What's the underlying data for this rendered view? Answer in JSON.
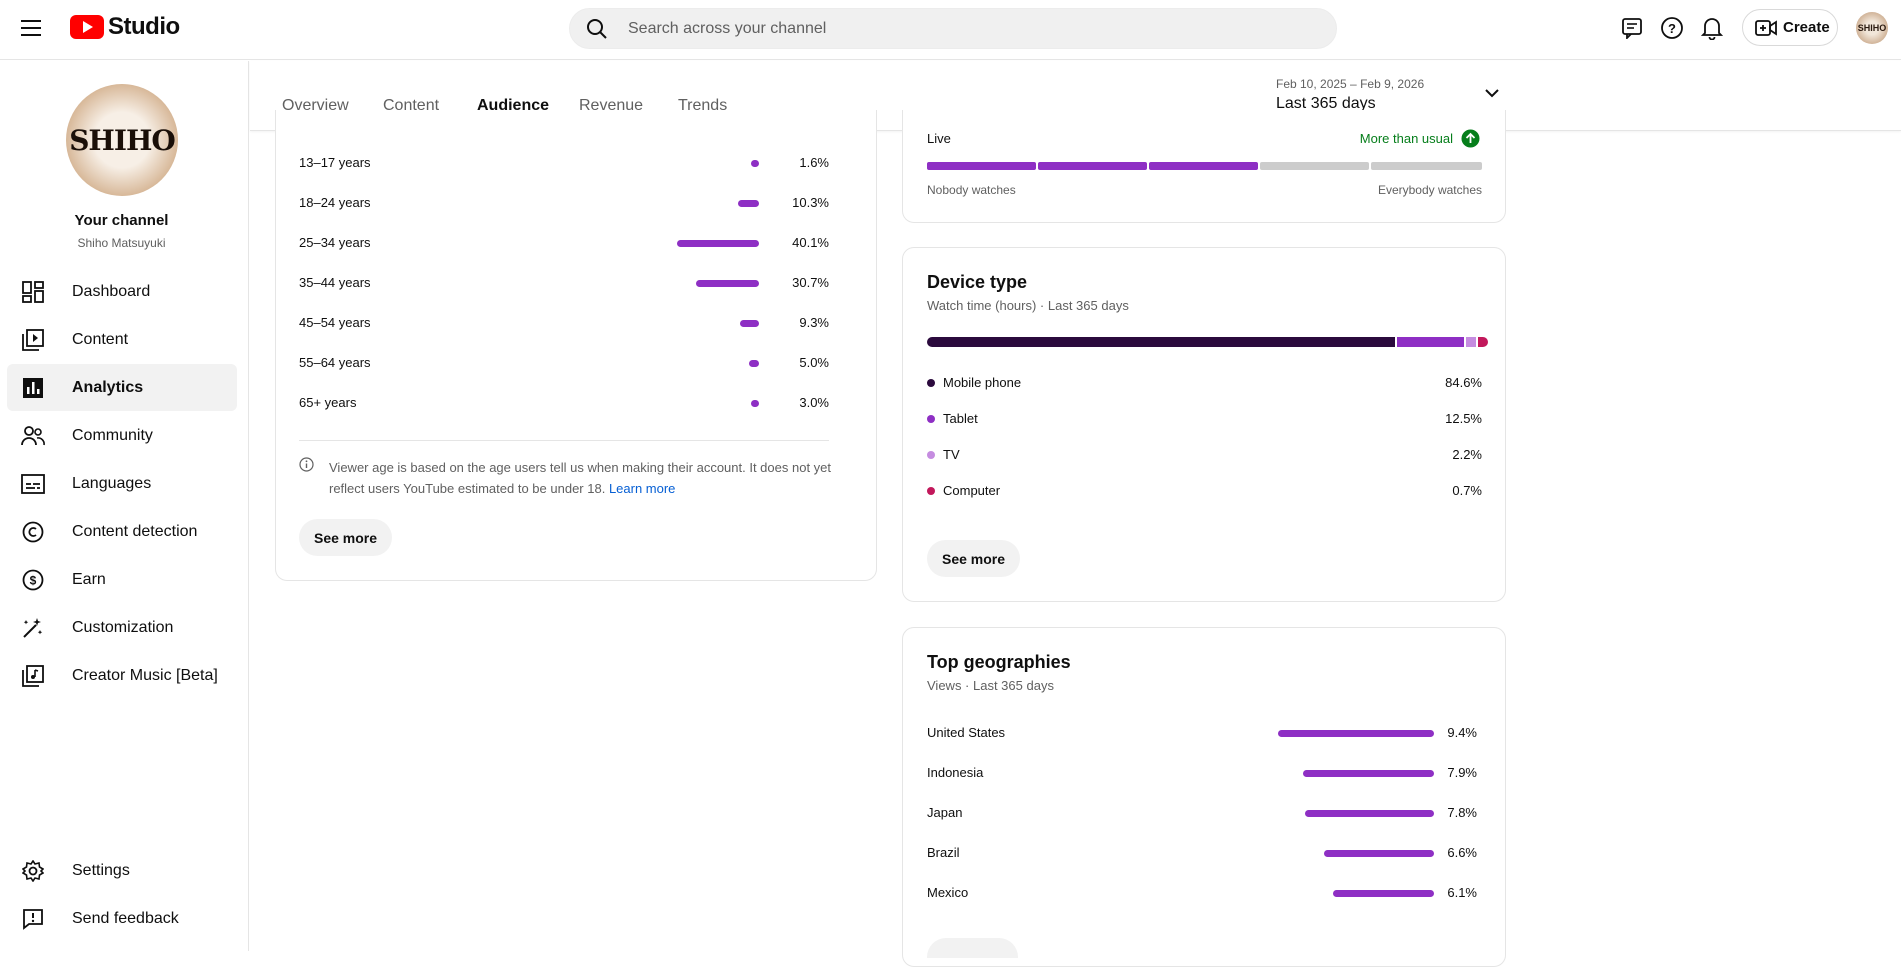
{
  "header": {
    "logo_text": "Studio",
    "search_placeholder": "Search across your channel",
    "create_label": "Create",
    "avatar_text": "SHIHO"
  },
  "channel": {
    "label": "Your channel",
    "name": "Shiho Matsuyuki",
    "avatar_text": "SHIHO"
  },
  "sidebar": {
    "items": [
      {
        "label": "Dashboard",
        "icon": "dashboard-icon"
      },
      {
        "label": "Content",
        "icon": "content-icon"
      },
      {
        "label": "Analytics",
        "icon": "analytics-icon"
      },
      {
        "label": "Community",
        "icon": "community-icon"
      },
      {
        "label": "Languages",
        "icon": "languages-icon"
      },
      {
        "label": "Content detection",
        "icon": "copyright-icon"
      },
      {
        "label": "Earn",
        "icon": "dollar-icon"
      },
      {
        "label": "Customization",
        "icon": "magic-wand-icon"
      },
      {
        "label": "Creator Music [Beta]",
        "icon": "music-icon"
      }
    ],
    "bottom": [
      {
        "label": "Settings",
        "icon": "gear-icon"
      },
      {
        "label": "Send feedback",
        "icon": "feedback-icon"
      }
    ]
  },
  "tabs": [
    "Overview",
    "Content",
    "Audience",
    "Revenue",
    "Trends"
  ],
  "active_tab": "Audience",
  "date_range": {
    "dates": "Feb 10, 2025 – Feb 9, 2026",
    "label": "Last 365 days"
  },
  "age": {
    "rows": [
      {
        "label": "13–17 years",
        "value": "1.6%",
        "pct": 1.6
      },
      {
        "label": "18–24 years",
        "value": "10.3%",
        "pct": 10.3
      },
      {
        "label": "25–34 years",
        "value": "40.1%",
        "pct": 40.1
      },
      {
        "label": "35–44 years",
        "value": "30.7%",
        "pct": 30.7
      },
      {
        "label": "45–54 years",
        "value": "9.3%",
        "pct": 9.3
      },
      {
        "label": "55–64 years",
        "value": "5.0%",
        "pct": 5.0
      },
      {
        "label": "65+ years",
        "value": "3.0%",
        "pct": 3.0
      }
    ],
    "note": "Viewer age is based on the age users tell us when making their account. It does not yet reflect users YouTube estimated to be under 18.",
    "learn_more": "Learn more",
    "see_more": "See more"
  },
  "watch_scale": {
    "row_label": "Live",
    "status": "More than usual",
    "filled_segments": 3,
    "total_segments": 5,
    "left_label": "Nobody watches",
    "right_label": "Everybody watches"
  },
  "device": {
    "title": "Device type",
    "subtitle": "Watch time (hours) · Last 365 days",
    "rows": [
      {
        "label": "Mobile phone",
        "value": "84.6%",
        "pct": 84.6,
        "color": "#2b0a3d"
      },
      {
        "label": "Tablet",
        "value": "12.5%",
        "pct": 12.5,
        "color": "#8e2fc4"
      },
      {
        "label": "TV",
        "value": "2.2%",
        "pct": 2.2,
        "color": "#c58ce0"
      },
      {
        "label": "Computer",
        "value": "0.7%",
        "pct": 0.7,
        "color": "#c2185b"
      }
    ],
    "see_more": "See more"
  },
  "geo": {
    "title": "Top geographies",
    "subtitle": "Views · Last 365 days",
    "rows": [
      {
        "label": "United States",
        "value": "9.4%",
        "pct": 9.4
      },
      {
        "label": "Indonesia",
        "value": "7.9%",
        "pct": 7.9
      },
      {
        "label": "Japan",
        "value": "7.8%",
        "pct": 7.8
      },
      {
        "label": "Brazil",
        "value": "6.6%",
        "pct": 6.6
      },
      {
        "label": "Mexico",
        "value": "6.1%",
        "pct": 6.1
      }
    ]
  },
  "colors": {
    "accent": "#8e2fc4",
    "status_green": "#067e1b",
    "scale_empty": "#cccccc"
  }
}
